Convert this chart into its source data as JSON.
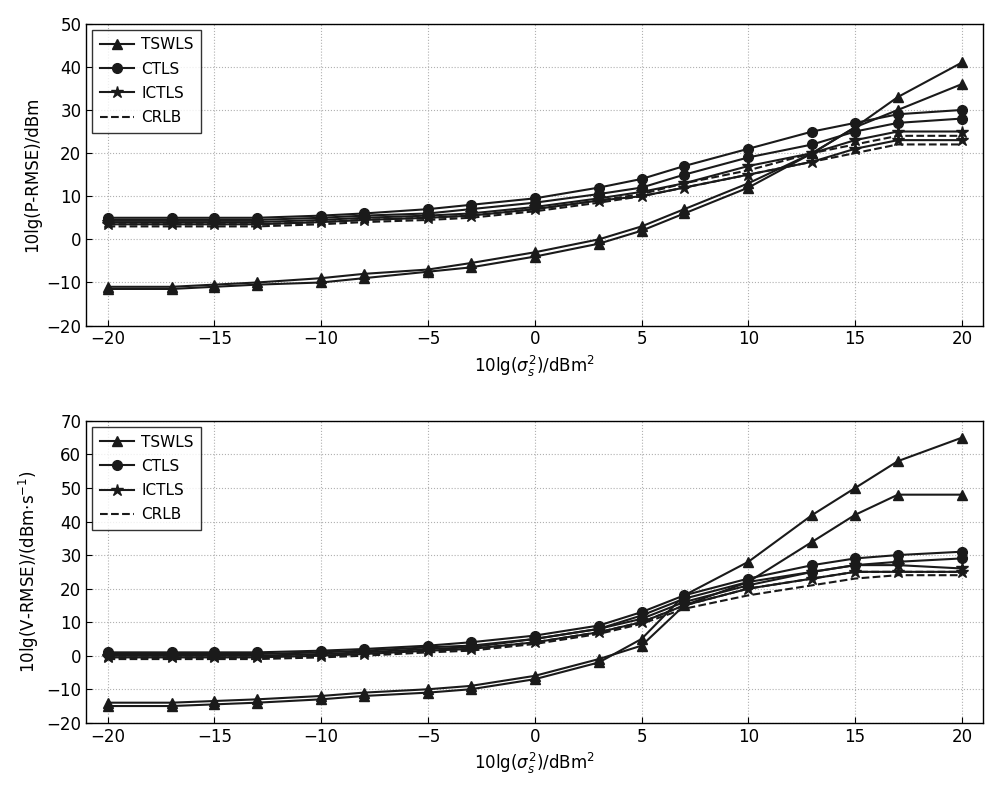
{
  "x": [
    -20,
    -17,
    -15,
    -13,
    -10,
    -8,
    -5,
    -3,
    0,
    3,
    5,
    7,
    10,
    13,
    15,
    17,
    20
  ],
  "top": {
    "ylabel": "10lg(P-RMSE)/dBm",
    "ylim": [
      -20,
      50
    ],
    "yticks": [
      -20,
      -10,
      0,
      10,
      20,
      30,
      40,
      50
    ],
    "TSWLS_1": [
      -11.5,
      -11.5,
      -11,
      -10.5,
      -10,
      -9,
      -7.5,
      -6.5,
      -4,
      -1,
      2,
      6,
      12,
      20,
      26,
      33,
      41
    ],
    "TSWLS_2": [
      -11,
      -11,
      -10.5,
      -10,
      -9,
      -8,
      -7,
      -5.5,
      -3,
      0,
      3,
      7,
      13,
      20,
      26,
      30,
      36
    ],
    "CTLS_1": [
      5,
      5,
      5,
      5,
      5.5,
      6,
      7,
      8,
      9.5,
      12,
      14,
      17,
      21,
      25,
      27,
      29,
      30
    ],
    "CTLS_2": [
      4.5,
      4.5,
      4.5,
      4.5,
      5,
      5.5,
      6,
      7,
      8.5,
      10.5,
      12,
      15,
      19,
      22,
      25,
      27,
      28
    ],
    "ICTLS_1": [
      4,
      4,
      4,
      4,
      4.5,
      5,
      5.5,
      6,
      7.5,
      9.5,
      11,
      13,
      17,
      20,
      23,
      25,
      25
    ],
    "ICTLS_2": [
      3.5,
      3.5,
      3.5,
      3.5,
      4,
      4.5,
      5,
      5.5,
      7,
      9,
      10,
      12,
      15,
      18,
      21,
      23,
      23
    ],
    "CRLB_1": [
      3.5,
      3.5,
      3.5,
      3.5,
      4,
      4.5,
      5,
      5.5,
      7,
      9,
      10.5,
      13,
      16,
      20,
      22,
      24,
      24
    ],
    "CRLB_2": [
      3,
      3,
      3,
      3,
      3.5,
      4,
      4.5,
      5,
      6.5,
      8.5,
      10,
      12,
      15,
      18,
      20,
      22,
      22
    ]
  },
  "bottom": {
    "ylabel": "10lg(V-RMSE)/(dBm·s⁻¹)",
    "ylim": [
      -20,
      70
    ],
    "yticks": [
      -20,
      -10,
      0,
      10,
      20,
      30,
      40,
      50,
      60,
      70
    ],
    "TSWLS_1": [
      -15,
      -15,
      -14.5,
      -14,
      -13,
      -12,
      -11,
      -10,
      -7,
      -2,
      5,
      18,
      28,
      42,
      50,
      58,
      65
    ],
    "TSWLS_2": [
      -14,
      -14,
      -13.5,
      -13,
      -12,
      -11,
      -10,
      -9,
      -6,
      -1,
      3,
      15,
      22,
      34,
      42,
      48,
      48
    ],
    "CTLS_1": [
      1,
      1,
      1,
      1,
      1.5,
      2,
      3,
      4,
      6,
      9,
      13,
      18,
      23,
      27,
      29,
      30,
      31
    ],
    "CTLS_2": [
      0.5,
      0.5,
      0.5,
      0.5,
      1,
      1.5,
      2.5,
      3,
      5,
      8,
      11,
      16,
      21,
      25,
      27,
      28,
      29
    ],
    "ICTLS_1": [
      0,
      0,
      0,
      0,
      0.5,
      1,
      2,
      2.5,
      5,
      8,
      12,
      17,
      22,
      25,
      27,
      27,
      26
    ],
    "ICTLS_2": [
      -0.5,
      -0.5,
      -0.5,
      -0.5,
      0,
      0.5,
      1.5,
      2,
      4,
      7,
      10,
      15,
      20,
      23,
      25,
      25,
      25
    ],
    "CRLB_1": [
      -0.5,
      -0.5,
      -0.5,
      -0.5,
      0,
      0.5,
      1.5,
      2,
      4,
      7,
      10,
      15,
      20,
      23,
      25,
      25,
      25
    ],
    "CRLB_2": [
      -1,
      -1,
      -1,
      -1,
      -0.5,
      0,
      1,
      1.5,
      3.5,
      6.5,
      9.5,
      14,
      18,
      21,
      23,
      24,
      24
    ]
  },
  "line_color": "#1a1a1a",
  "grid_color": "#b0b0b0",
  "background": "#ffffff"
}
